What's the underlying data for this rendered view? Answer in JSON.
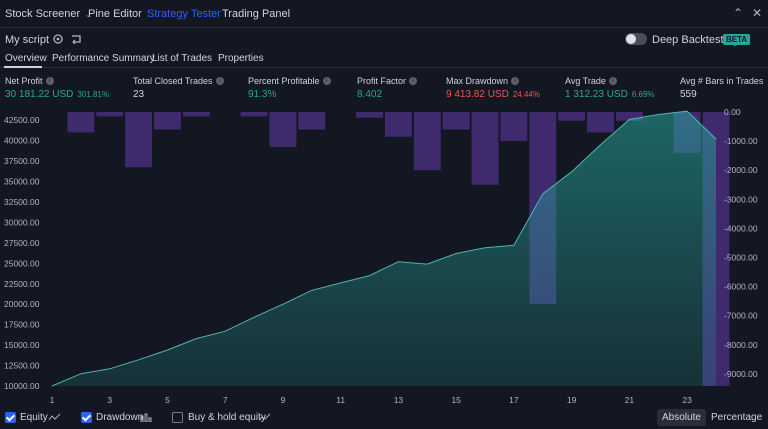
{
  "topbar": {
    "tabs": [
      {
        "label": "Stock Screener",
        "has_chevron": true
      },
      {
        "label": "Pine Editor"
      },
      {
        "label": "Strategy Tester",
        "active": true
      },
      {
        "label": "Trading Panel"
      }
    ],
    "window_controls": [
      "chevron-up-icon",
      "close-icon"
    ]
  },
  "script": {
    "name": "My script",
    "deep_backtesting_label": "Deep Backtesting",
    "beta_label": "BETA"
  },
  "tabs": [
    "Overview",
    "Performance Summary",
    "List of Trades",
    "Properties"
  ],
  "metrics": [
    {
      "label": "Net Profit",
      "value": "30 181.22 USD",
      "sub": "301.81%",
      "color": "green"
    },
    {
      "label": "Total Closed Trades",
      "value": "23",
      "sub": ""
    },
    {
      "label": "Percent Profitable",
      "value": "91.3%",
      "sub": "",
      "color": "green"
    },
    {
      "label": "Profit Factor",
      "value": "8.402",
      "sub": "",
      "color": "green"
    },
    {
      "label": "Max Drawdown",
      "value": "9 413.82 USD",
      "sub": "24.44%",
      "color": "red"
    },
    {
      "label": "Avg Trade",
      "value": "1 312.23 USD",
      "sub": "6.69%",
      "color": "green"
    },
    {
      "label": "Avg # Bars in Trades",
      "value": "559",
      "sub": ""
    }
  ],
  "bottom": {
    "equity_label": "Equity",
    "drawdown_label": "Drawdown",
    "buyhold_label": "Buy & hold equity",
    "absolute_label": "Absolute",
    "percentage_label": "Percentage"
  },
  "colors": {
    "background": "#131722",
    "equity_fill": "#26a69a",
    "drawdown_bar": "#3f2a6e",
    "accent": "#2962ff"
  },
  "chart_data": {
    "type": "area",
    "x_ticks": [
      1,
      3,
      5,
      7,
      9,
      11,
      13,
      15,
      17,
      19,
      21,
      23
    ],
    "left_axis": {
      "ticks": [
        "42500.00",
        "40000.00",
        "37500.00",
        "35000.00",
        "32500.00",
        "30000.00",
        "27500.00",
        "25000.00",
        "22500.00",
        "20000.00",
        "17500.00",
        "15000.00",
        "12500.00",
        "10000.00"
      ],
      "range": [
        10000,
        43500
      ]
    },
    "right_axis": {
      "ticks": [
        "0.00",
        "-1000.00",
        "-2000.00",
        "-3000.00",
        "-4000.00",
        "-5000.00",
        "-6000.00",
        "-7000.00",
        "-8000.00",
        "-9000.00"
      ],
      "range": [
        -9413.82,
        0
      ]
    },
    "series": [
      {
        "name": "Equity",
        "x": [
          1,
          2,
          3,
          4,
          5,
          6,
          7,
          8,
          9,
          10,
          11,
          12,
          13,
          14,
          15,
          16,
          17,
          18,
          19,
          20,
          21,
          22,
          23,
          24
        ],
        "values": [
          10000,
          11500,
          12100,
          13200,
          14400,
          15800,
          16700,
          18400,
          20000,
          21700,
          22600,
          23500,
          25200,
          24900,
          26200,
          26900,
          27200,
          33500,
          36200,
          39500,
          42600,
          43200,
          43600,
          40200
        ]
      },
      {
        "name": "Drawdown",
        "x": [
          1,
          2,
          3,
          4,
          5,
          6,
          7,
          8,
          9,
          10,
          11,
          12,
          13,
          14,
          15,
          16,
          17,
          18,
          19,
          20,
          21,
          22,
          23,
          24
        ],
        "values": [
          0,
          -700,
          -150,
          -1900,
          -600,
          -150,
          0,
          -150,
          -1200,
          -600,
          0,
          -200,
          -850,
          -2000,
          -600,
          -2500,
          -1000,
          -6600,
          -300,
          -700,
          -300,
          0,
          -1400,
          -9413.82
        ]
      }
    ]
  }
}
